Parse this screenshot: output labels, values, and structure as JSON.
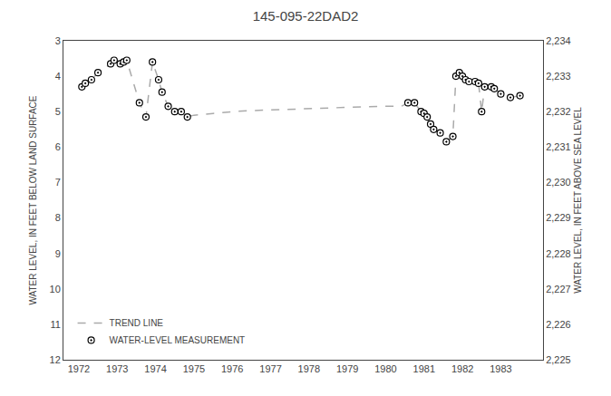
{
  "chart_data": {
    "type": "line",
    "title": "145-095-22DAD2",
    "ylabel": "WATER LEVEL, IN FEET BELOW LAND SURFACE",
    "y2label": "WATER LEVEL, IN FEET ABOVE SEA LEVEL",
    "xlim": [
      1971.6,
      1984.1
    ],
    "xticks": [
      1972,
      1973,
      1974,
      1975,
      1976,
      1977,
      1978,
      1979,
      1980,
      1981,
      1982,
      1983
    ],
    "ylim": [
      12,
      3
    ],
    "yticks": [
      3,
      4,
      5,
      6,
      7,
      8,
      9,
      10,
      11,
      12
    ],
    "y2lim": [
      2225,
      2234
    ],
    "y2ticks": [
      {
        "value": 2225,
        "label": "2,225"
      },
      {
        "value": 2226,
        "label": "2,226"
      },
      {
        "value": 2227,
        "label": "2,227"
      },
      {
        "value": 2228,
        "label": "2,228"
      },
      {
        "value": 2229,
        "label": "2,229"
      },
      {
        "value": 2230,
        "label": "2,230"
      },
      {
        "value": 2231,
        "label": "2,231"
      },
      {
        "value": 2232,
        "label": "2,232"
      },
      {
        "value": 2233,
        "label": "2,233"
      },
      {
        "value": 2234,
        "label": "2,234"
      }
    ],
    "grid": false,
    "legend": "lower left",
    "series": [
      {
        "name": "TREND LINE",
        "type": "line",
        "line_style": "dashed",
        "color": "#aaaaaa",
        "x": [
          1972.08,
          1972.17,
          1972.33,
          1972.5,
          1972.83,
          1972.92,
          1973.08,
          1973.17,
          1973.25,
          1973.58,
          1973.75,
          1973.92,
          1974.08,
          1974.17,
          1974.33,
          1974.5,
          1974.67,
          1974.83,
          1975.0,
          1975.5,
          1976.0,
          1976.5,
          1977.0,
          1977.5,
          1978.0,
          1978.5,
          1979.0,
          1979.5,
          1980.0,
          1980.4,
          1980.58,
          1980.75,
          1980.92,
          1981.0,
          1981.08,
          1981.17,
          1981.25,
          1981.42,
          1981.58,
          1981.75,
          1981.83,
          1981.92,
          1982.0,
          1982.08,
          1982.17,
          1982.33,
          1982.42,
          1982.5,
          1982.58,
          1982.75,
          1982.83,
          1983.0,
          1983.25,
          1983.5
        ],
        "values": [
          4.3,
          4.2,
          4.1,
          3.9,
          3.65,
          3.55,
          3.65,
          3.6,
          3.55,
          4.75,
          5.15,
          3.6,
          4.1,
          4.45,
          4.85,
          5.0,
          5.0,
          5.15,
          5.1,
          5.05,
          5.0,
          4.97,
          4.95,
          4.93,
          4.91,
          4.89,
          4.87,
          4.86,
          4.85,
          4.85,
          4.75,
          4.75,
          5.0,
          5.05,
          5.15,
          5.35,
          5.5,
          5.6,
          5.85,
          5.7,
          4.0,
          3.9,
          4.0,
          4.1,
          4.15,
          4.15,
          4.2,
          5.0,
          4.3,
          4.3,
          4.35,
          4.5,
          4.6,
          4.55
        ]
      },
      {
        "name": "WATER-LEVEL MEASUREMENT",
        "type": "scatter",
        "marker": "circle-dot",
        "color": "#000000",
        "x": [
          1972.08,
          1972.17,
          1972.33,
          1972.5,
          1972.83,
          1972.92,
          1973.08,
          1973.17,
          1973.25,
          1973.58,
          1973.75,
          1973.92,
          1974.08,
          1974.17,
          1974.33,
          1974.5,
          1974.67,
          1974.83,
          1980.58,
          1980.75,
          1980.92,
          1981.0,
          1981.08,
          1981.17,
          1981.25,
          1981.42,
          1981.58,
          1981.75,
          1981.83,
          1981.92,
          1982.0,
          1982.08,
          1982.17,
          1982.33,
          1982.42,
          1982.5,
          1982.58,
          1982.75,
          1982.83,
          1983.0,
          1983.25,
          1983.5
        ],
        "values": [
          4.3,
          4.2,
          4.1,
          3.9,
          3.65,
          3.55,
          3.65,
          3.6,
          3.55,
          4.75,
          5.15,
          3.6,
          4.1,
          4.45,
          4.85,
          5.0,
          5.0,
          5.15,
          4.75,
          4.75,
          5.0,
          5.05,
          5.15,
          5.35,
          5.5,
          5.6,
          5.85,
          5.7,
          4.0,
          3.9,
          4.0,
          4.1,
          4.15,
          4.15,
          4.2,
          5.0,
          4.3,
          4.3,
          4.35,
          4.5,
          4.6,
          4.55
        ]
      }
    ]
  }
}
